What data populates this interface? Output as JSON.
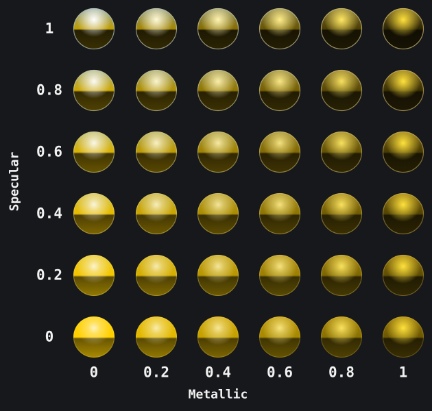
{
  "chart_data": {
    "type": "heatmap",
    "xlabel": "Metallic",
    "ylabel": "Specular",
    "x_values": [
      "0",
      "0.2",
      "0.4",
      "0.6",
      "0.8",
      "1"
    ],
    "y_values": [
      "1",
      "0.8",
      "0.6",
      "0.4",
      "0.2",
      "0"
    ],
    "base_color": "#ffd000",
    "background": "#17181b"
  }
}
